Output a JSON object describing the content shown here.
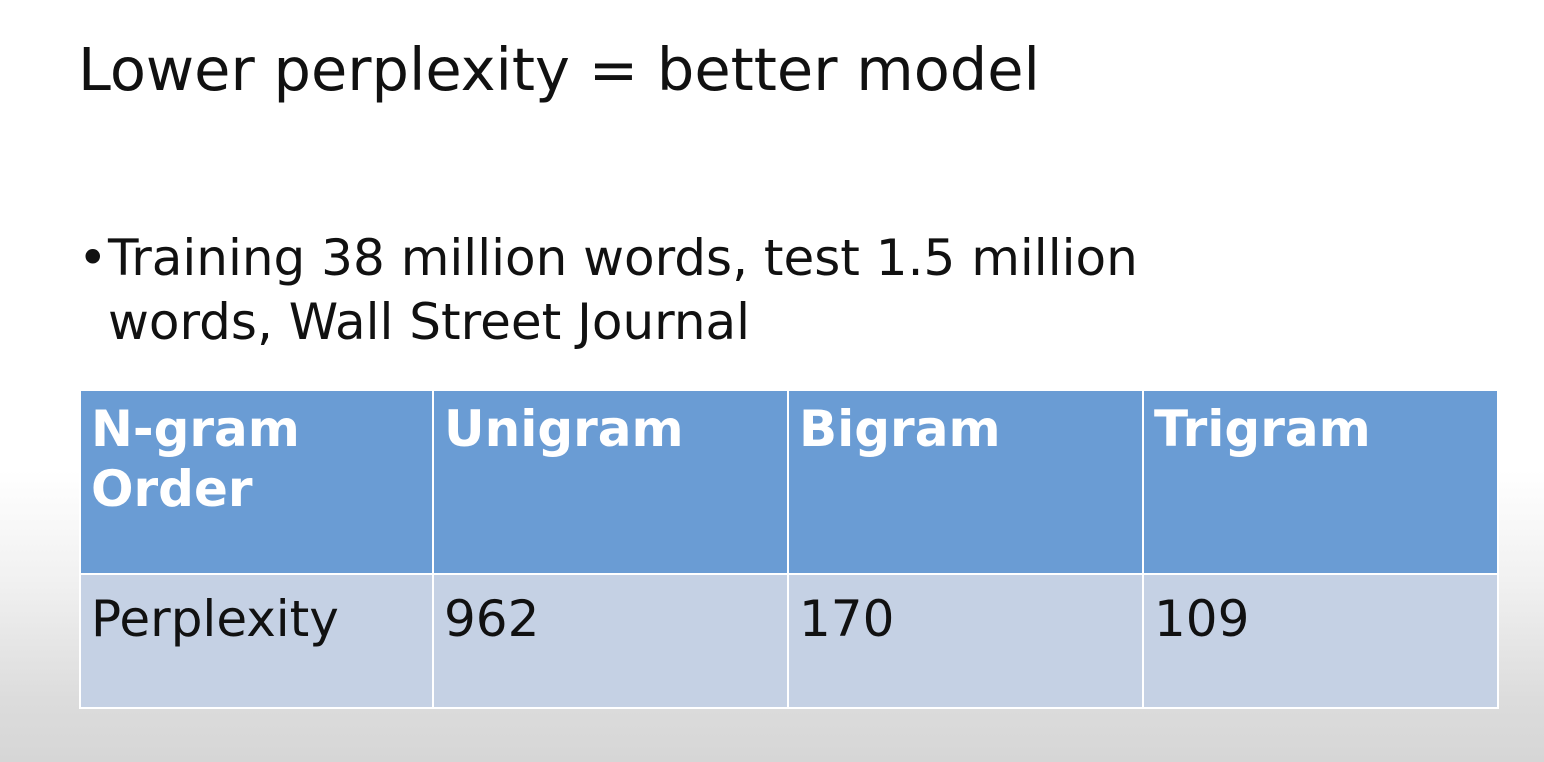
{
  "slide": {
    "title": "Lower perplexity = better model",
    "bullets": [
      "Training 38 million words, test 1.5 million words, Wall Street Journal"
    ]
  },
  "table": {
    "headers": [
      "N-gram Order",
      "Unigram",
      "Bigram",
      "Trigram"
    ],
    "rows": [
      [
        "Perplexity",
        "962",
        "170",
        "109"
      ]
    ],
    "colors": {
      "header_bg": "#6a9cd4",
      "header_text": "#ffffff",
      "row_bg": "#c5d1e4",
      "row_text": "#111111"
    }
  }
}
